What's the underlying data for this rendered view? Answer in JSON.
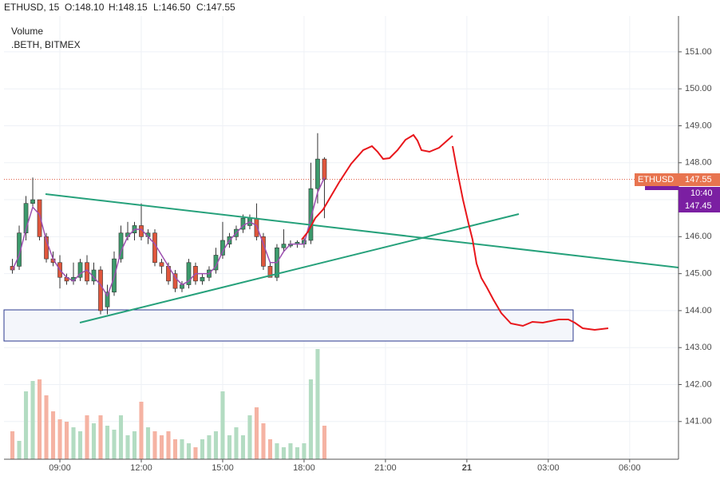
{
  "chart_data": {
    "type": "candlestick",
    "header": {
      "symbol": "ETHUSD, 15",
      "open": "O:148.10",
      "high": "H:148.15",
      "low": "L:146.50",
      "close": "C:147.55"
    },
    "study_title": "Volume",
    "study_source": ".BETH, BITMEX",
    "x": [
      7.25,
      7.5,
      7.75,
      8,
      8.25,
      8.5,
      8.75,
      9,
      9.25,
      9.5,
      9.75,
      10,
      10.25,
      10.5,
      10.75,
      11,
      11.25,
      11.5,
      11.75,
      12,
      12.25,
      12.5,
      12.75,
      13,
      13.25,
      13.5,
      13.75,
      14,
      14.25,
      14.5,
      14.75,
      15,
      15.25,
      15.5,
      15.75,
      16,
      16.25,
      16.5,
      16.75,
      17,
      17.25,
      17.5,
      17.75,
      18,
      18.25,
      18.5,
      18.75
    ],
    "open": [
      145.2,
      145.2,
      146.1,
      146.9,
      147.0,
      146.0,
      145.4,
      145.3,
      144.9,
      144.8,
      144.9,
      145.3,
      144.8,
      145.1,
      144.1,
      144.5,
      145.4,
      146.0,
      146.1,
      146.3,
      146.0,
      146.1,
      145.3,
      145.2,
      145.0,
      144.6,
      144.7,
      145.2,
      144.8,
      144.9,
      145.1,
      145.5,
      145.8,
      146.0,
      146.2,
      146.3,
      146.5,
      146.0,
      145.2,
      144.9,
      145.7,
      145.75,
      145.8,
      145.8,
      145.9,
      147.3,
      148.1
    ],
    "high": [
      145.4,
      146.3,
      147.1,
      147.6,
      147.0,
      146.1,
      145.6,
      145.5,
      145.0,
      145.3,
      145.4,
      145.5,
      145.3,
      145.2,
      144.7,
      145.6,
      146.3,
      146.4,
      146.4,
      146.9,
      146.2,
      146.2,
      145.4,
      145.3,
      145.1,
      144.8,
      145.4,
      145.3,
      145.0,
      145.2,
      145.7,
      146.4,
      146.1,
      146.3,
      146.6,
      146.6,
      146.9,
      146.1,
      145.3,
      145.8,
      146.2,
      145.9,
      145.9,
      146.0,
      148.0,
      148.8,
      148.15
    ],
    "low": [
      145.0,
      145.1,
      145.9,
      146.8,
      145.9,
      145.3,
      145.2,
      144.6,
      144.7,
      144.7,
      144.8,
      144.7,
      144.7,
      143.9,
      143.9,
      144.4,
      145.3,
      145.9,
      145.9,
      145.9,
      145.8,
      145.2,
      145.0,
      144.7,
      144.5,
      144.5,
      144.6,
      144.7,
      144.7,
      144.8,
      145.0,
      145.4,
      145.7,
      145.9,
      146.1,
      146.2,
      145.9,
      145.1,
      144.9,
      144.8,
      145.6,
      145.7,
      145.7,
      145.7,
      145.8,
      146.9,
      146.5
    ],
    "close": [
      145.1,
      146.1,
      146.9,
      147.0,
      146.0,
      145.4,
      145.3,
      144.9,
      144.8,
      144.9,
      145.3,
      144.8,
      145.1,
      144.0,
      144.5,
      145.4,
      146.1,
      146.1,
      146.3,
      146.0,
      146.1,
      145.3,
      145.2,
      144.8,
      144.6,
      144.7,
      145.3,
      144.8,
      144.9,
      145.1,
      145.5,
      145.9,
      146.0,
      146.2,
      146.5,
      146.5,
      146.0,
      145.2,
      144.9,
      145.7,
      145.8,
      145.8,
      145.85,
      145.9,
      147.3,
      148.1,
      147.55
    ],
    "volume": [
      35,
      23,
      85,
      98,
      100,
      80,
      60,
      50,
      47,
      40,
      35,
      55,
      45,
      55,
      42,
      37,
      55,
      30,
      35,
      72,
      40,
      35,
      30,
      35,
      25,
      25,
      20,
      15,
      25,
      30,
      35,
      85,
      30,
      40,
      30,
      55,
      65,
      45,
      25,
      20,
      15,
      20,
      15,
      20,
      100,
      138,
      42
    ],
    "moving_average": {
      "color": "#9c4fb0",
      "values": [
        145.1,
        145.5,
        146.2,
        146.8,
        146.6,
        145.9,
        145.4,
        145.1,
        144.9,
        144.8,
        145.0,
        145.1,
        144.9,
        144.7,
        144.4,
        144.9,
        145.6,
        146.0,
        146.2,
        146.2,
        146.0,
        145.8,
        145.5,
        145.2,
        144.9,
        144.7,
        144.8,
        145.0,
        145.0,
        145.0,
        145.2,
        145.6,
        145.9,
        146.1,
        146.3,
        146.4,
        146.3,
        145.8,
        145.3,
        145.3,
        145.6,
        145.8,
        145.8,
        145.8,
        146.5,
        147.2,
        147.6
      ]
    },
    "up_color": "#3c9a6c",
    "down_color": "#e0563c",
    "volume_up_color": "#b3dcc2",
    "volume_down_color": "#f5b3a3",
    "grid": true,
    "xlim": [
      6.94,
      31.8
    ],
    "xticks": [
      {
        "value": 9,
        "label": "09:00"
      },
      {
        "value": 12,
        "label": "12:00"
      },
      {
        "value": 15,
        "label": "15:00"
      },
      {
        "value": 18,
        "label": "18:00"
      },
      {
        "value": 21,
        "label": "21:00"
      },
      {
        "value": 24,
        "label": "21"
      },
      {
        "value": 27,
        "label": "03:00"
      },
      {
        "value": 30,
        "label": "06:00"
      }
    ],
    "ylim": [
      139.98,
      151.97
    ],
    "yticks": [
      {
        "value": 141,
        "label": "141.00"
      },
      {
        "value": 142,
        "label": "142.00"
      },
      {
        "value": 143,
        "label": "143.00"
      },
      {
        "value": 144,
        "label": "144.00"
      },
      {
        "value": 145,
        "label": "145.00"
      },
      {
        "value": 146,
        "label": "146.00"
      },
      {
        "value": 147,
        "label": "147.00"
      },
      {
        "value": 148,
        "label": "148.00"
      },
      {
        "value": 149,
        "label": "149.00"
      },
      {
        "value": 150,
        "label": "150.00"
      },
      {
        "value": 151,
        "label": "151.00"
      }
    ],
    "last_price": {
      "symbol": "ETHUSD",
      "price": {
        "value": 147.55,
        "label": "147.55"
      },
      "countdown": "10:40"
    },
    "bid_price": {
      "value": 147.45,
      "label": "147.45"
    }
  }
}
